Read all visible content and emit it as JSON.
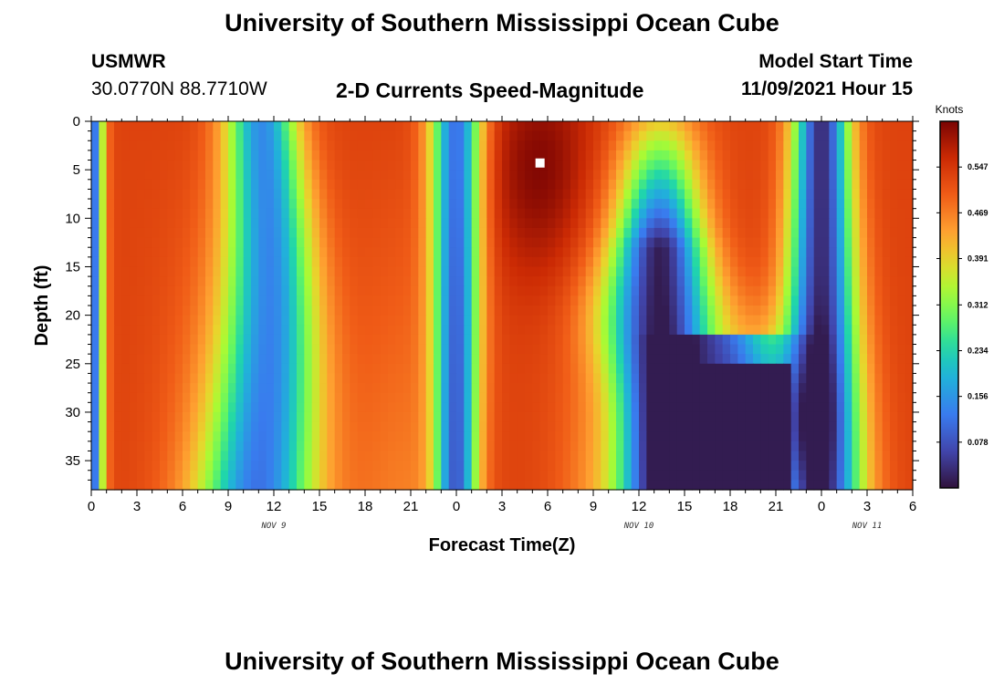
{
  "page": {
    "title_top": "University of Southern Mississippi Ocean Cube",
    "title_bottom": "University of Southern Mississippi Ocean Cube",
    "station_name": "USMWR",
    "station_coords": "30.0770N  88.7710W",
    "plot_title": "2-D Currents Speed-Magnitude",
    "model_start_label": "Model Start Time",
    "model_start_value": "11/09/2021 Hour 15"
  },
  "chart_data": {
    "type": "heatmap",
    "title": "2-D Currents Speed-Magnitude",
    "xlabel": "Forecast Time(Z)",
    "ylabel": "Depth (ft)",
    "units": "Knots",
    "x_range_hours": [
      0,
      54
    ],
    "x_tick_hours": [
      0,
      3,
      6,
      9,
      12,
      15,
      18,
      21,
      24,
      27,
      30,
      33,
      36,
      39,
      42,
      45,
      48,
      51,
      54
    ],
    "x_tick_labels": [
      "0",
      "3",
      "6",
      "9",
      "12",
      "15",
      "18",
      "21",
      "0",
      "3",
      "6",
      "9",
      "12",
      "15",
      "18",
      "21",
      "0",
      "3",
      "6"
    ],
    "date_labels": [
      {
        "text": "NOV 9",
        "hour": 12
      },
      {
        "text": "NOV 10",
        "hour": 36
      },
      {
        "text": "NOV 11",
        "hour": 51
      }
    ],
    "ylim": [
      0,
      38
    ],
    "y_ticks": [
      0,
      5,
      10,
      15,
      20,
      25,
      30,
      35
    ],
    "y_reversed": true,
    "colorbar": {
      "min": 0.0,
      "max": 0.625,
      "labels": [
        "0.547",
        "0.469",
        "0.391",
        "0.312",
        "0.234",
        "0.156",
        "0.078"
      ],
      "colormap": "turbo"
    },
    "grid": false,
    "marker": {
      "hour": 29.5,
      "depth": 4.3
    }
  }
}
